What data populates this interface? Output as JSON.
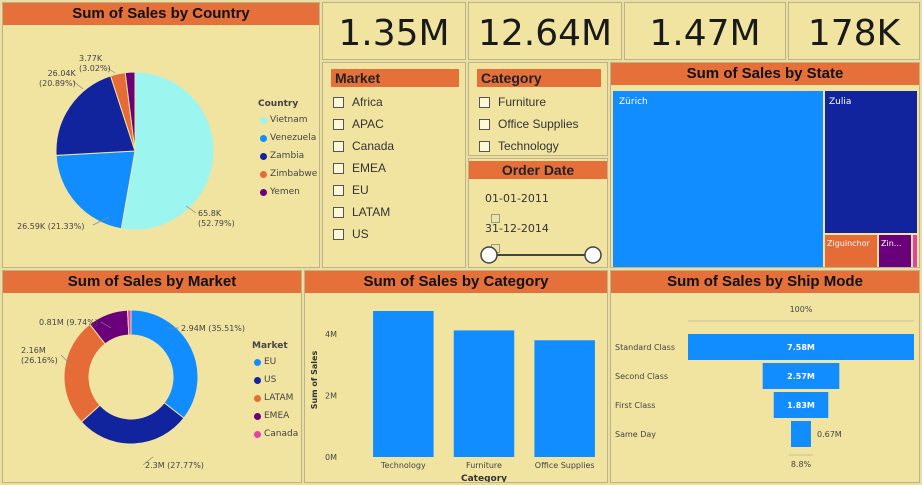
{
  "kpis": [
    "1.35M",
    "12.64M",
    "1.47M",
    "178K"
  ],
  "colors": {
    "blue": "#118DFF",
    "navy": "#12239E",
    "cyan": "#9DF5EF",
    "orange": "#E66C37",
    "purple": "#6B007B",
    "pink": "#E044A7",
    "title_bg": "#E5703A",
    "panel_bg": "#F1E4A1"
  },
  "slicers": {
    "market": {
      "title": "Market",
      "items": [
        "Africa",
        "APAC",
        "Canada",
        "EMEA",
        "EU",
        "LATAM",
        "US"
      ]
    },
    "category": {
      "title": "Category",
      "items": [
        "Furniture",
        "Office Supplies",
        "Technology"
      ]
    },
    "order_date": {
      "title": "Order Date",
      "start": "01-01-2011",
      "end": "31-12-2014",
      "icon": "calendar-icon"
    }
  },
  "chart_data": [
    {
      "type": "pie",
      "title": "Sum of Sales by Country",
      "legend_title": "Country",
      "legend_position": "right",
      "slices": [
        {
          "name": "Vietnam",
          "value": 65.8,
          "label": "65.8K\n(52.79%)",
          "color": "#9DF5EF"
        },
        {
          "name": "Venezuela",
          "value": 26.59,
          "label": "26.59K (21.33%)",
          "color": "#118DFF"
        },
        {
          "name": "Zambia",
          "value": 26.04,
          "label": "26.04K\n(20.89%)",
          "color": "#12239E"
        },
        {
          "name": "Zimbabwe",
          "value": 3.77,
          "label": "3.77K\n(3.02%)",
          "color": "#E66C37"
        },
        {
          "name": "Yemen",
          "value": 2.47,
          "label": "",
          "color": "#6B007B"
        }
      ]
    },
    {
      "type": "treemap",
      "title": "Sum of Sales by State",
      "items": [
        {
          "name": "Zürich",
          "color": "#118DFF"
        },
        {
          "name": "Zulia",
          "color": "#12239E"
        },
        {
          "name": "Ziguinchor",
          "color": "#E66C37"
        },
        {
          "name": "Zin...",
          "color": "#6B007B"
        },
        {
          "name": "",
          "color": "#E044A7"
        }
      ]
    },
    {
      "type": "pie",
      "donut": true,
      "title": "Sum of Sales by Market",
      "legend_title": "Market",
      "legend_position": "right",
      "slices": [
        {
          "name": "EU",
          "value": 35.51,
          "label": "2.94M (35.51%)",
          "color": "#118DFF"
        },
        {
          "name": "US",
          "value": 27.77,
          "label": "2.3M (27.77%)",
          "color": "#12239E"
        },
        {
          "name": "LATAM",
          "value": 26.16,
          "label": "2.16M\n(26.16%)",
          "color": "#E66C37"
        },
        {
          "name": "EMEA",
          "value": 9.74,
          "label": "0.81M (9.74%)",
          "color": "#6B007B"
        },
        {
          "name": "Canada",
          "value": 0.82,
          "label": "",
          "color": "#E044A7"
        }
      ]
    },
    {
      "type": "bar",
      "title": "Sum of Sales by Category",
      "categories": [
        "Technology",
        "Furniture",
        "Office Supplies"
      ],
      "values": [
        4.74,
        4.11,
        3.79
      ],
      "xlabel": "Category",
      "ylabel": "Sum of Sales",
      "yticks": [
        "0M",
        "2M",
        "4M"
      ],
      "ylim": [
        0,
        5
      ],
      "color": "#118DFF"
    },
    {
      "type": "funnel",
      "title": "Sum of Sales by Ship Mode",
      "top_label": "100%",
      "bottom_label": "8.8%",
      "categories": [
        "Standard Class",
        "Second Class",
        "First Class",
        "Same Day"
      ],
      "values": [
        7.58,
        2.57,
        1.83,
        0.67
      ],
      "labels": [
        "7.58M",
        "2.57M",
        "1.83M",
        "0.67M"
      ],
      "color": "#118DFF"
    }
  ]
}
